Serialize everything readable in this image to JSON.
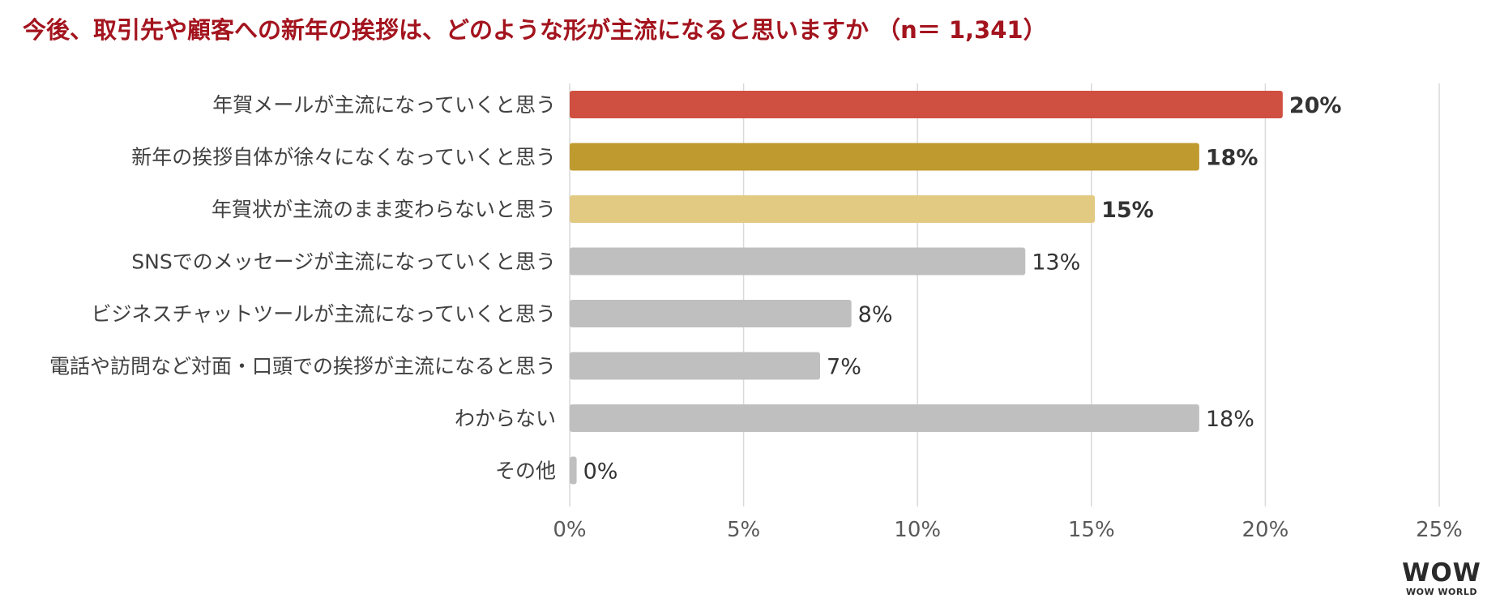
{
  "title": "今後、取引先や顧客への新年の挨拶は、どのような形が主流になると思いますか （n＝ 1,341）",
  "chart_data": {
    "type": "bar",
    "orientation": "horizontal",
    "categories": [
      "年賀メールが主流になっていくと思う",
      "新年の挨拶自体が徐々になくなっていくと思う",
      "年賀状が主流のまま変わらないと思う",
      "SNSでのメッセージが主流になっていくと思う",
      "ビジネスチャットツールが主流になっていくと思う",
      "電話や訪問など対面・口頭での挨拶が主流になると思う",
      "わからない",
      "その他"
    ],
    "values": [
      20.5,
      18.1,
      15.1,
      13.1,
      8.1,
      7.2,
      18.1,
      0.2
    ],
    "data_labels": [
      "20%",
      "18%",
      "15%",
      "13%",
      "8%",
      "7%",
      "18%",
      "0%"
    ],
    "bar_colors": [
      "#cf5040",
      "#bf9a2e",
      "#e3ca82",
      "#bfbfbf",
      "#bfbfbf",
      "#bfbfbf",
      "#bfbfbf",
      "#bfbfbf"
    ],
    "bold_labels": [
      true,
      true,
      true,
      false,
      false,
      false,
      false,
      false
    ],
    "xlim": [
      0,
      25
    ],
    "xticks": [
      0,
      5,
      10,
      15,
      20,
      25
    ],
    "xtick_labels": [
      "0%",
      "5%",
      "10%",
      "15%",
      "20%",
      "25%"
    ],
    "grid": true,
    "legend": "none"
  },
  "logo": {
    "mark": "WOW",
    "text": "WOW WORLD"
  },
  "colors": {
    "title": "#a3141e",
    "text": "#333333",
    "axis_text": "#595959",
    "grid": "#d9d9d9"
  }
}
